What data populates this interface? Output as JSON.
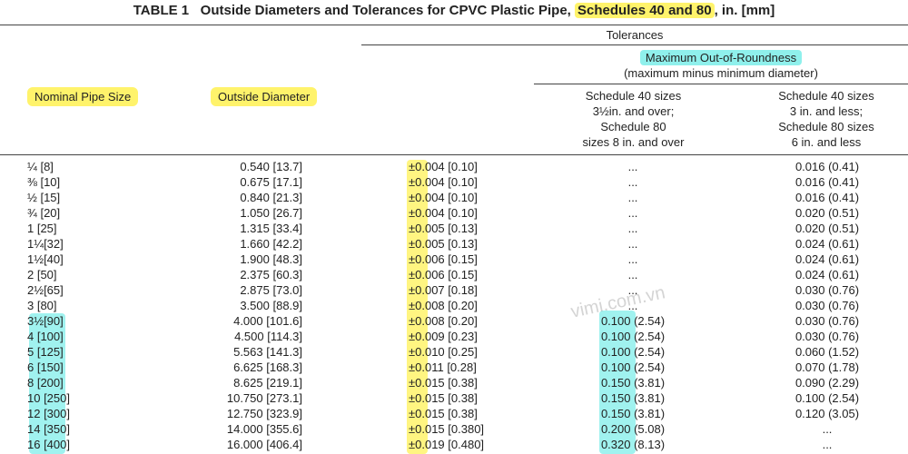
{
  "title": {
    "number": "TABLE 1",
    "text": "Outside Diameters and Tolerances for CPVC Plastic Pipe,",
    "highlight": "Schedules 40 and 80",
    "suffix": ", in. [mm]"
  },
  "header": {
    "tolerances": "Tolerances",
    "out_of_roundness": "Maximum Out-of-Roundness",
    "out_of_roundness_note": "(maximum minus minimum diameter)",
    "nominal_pipe_size": "Nominal Pipe Size",
    "outside_diameter": "Outside Diameter",
    "schedule_a": [
      "Schedule 40 sizes",
      "3½in. and over;",
      "Schedule 80",
      "sizes 8 in. and over"
    ],
    "schedule_b": [
      "Schedule 40 sizes",
      "3 in. and less;",
      "Schedule 80 sizes",
      "6 in. and less"
    ]
  },
  "table": {
    "rows": [
      [
        "¼ [8]",
        "0.540 [13.7]",
        "±0.004 [0.10]",
        "...",
        "0.016 (0.41)"
      ],
      [
        "⅜ [10]",
        "0.675 [17.1]",
        "±0.004 [0.10]",
        "...",
        "0.016 (0.41)"
      ],
      [
        "½ [15]",
        "0.840 [21.3]",
        "±0.004 [0.10]",
        "...",
        "0.016 (0.41)"
      ],
      [
        "¾ [20]",
        "1.050 [26.7]",
        "±0.004 [0.10]",
        "...",
        "0.020 (0.51)"
      ],
      [
        "1 [25]",
        "1.315 [33.4]",
        "±0.005 [0.13]",
        "...",
        "0.020 (0.51)"
      ],
      [
        "1¼[32]",
        "1.660 [42.2]",
        "±0.005 [0.13]",
        "...",
        "0.024 (0.61)"
      ],
      [
        "1½[40]",
        "1.900 [48.3]",
        "±0.006 [0.15]",
        "...",
        "0.024 (0.61)"
      ],
      [
        "2 [50]",
        "2.375 [60.3]",
        "±0.006 [0.15]",
        "...",
        "0.024 (0.61)"
      ],
      [
        "2½[65]",
        "2.875 [73.0]",
        "±0.007 [0.18]",
        "...",
        "0.030 (0.76)"
      ],
      [
        "3 [80]",
        "3.500 [88.9]",
        "±0.008 [0.20]",
        "...",
        "0.030 (0.76)"
      ],
      [
        "3½[90]",
        "4.000 [101.6]",
        "±0.008 [0.20]",
        "0.100 (2.54)",
        "0.030 (0.76)"
      ],
      [
        "4 [100]",
        "4.500 [114.3]",
        "±0.009 [0.23]",
        "0.100 (2.54)",
        "0.030 (0.76)"
      ],
      [
        "5 [125]",
        "5.563 [141.3]",
        "±0.010 [0.25]",
        "0.100 (2.54)",
        "0.060 (1.52)"
      ],
      [
        "6 [150]",
        "6.625 [168.3]",
        "±0.011 [0.28]",
        "0.100 (2.54)",
        "0.070 (1.78)"
      ],
      [
        "8 [200]",
        "8.625 [219.1]",
        "±0.015 [0.38]",
        "0.150 (3.81)",
        "0.090 (2.29)"
      ],
      [
        "10 [250]",
        "10.750 [273.1]",
        "±0.015 [0.38]",
        "0.150 (3.81)",
        "0.100 (2.54)"
      ],
      [
        "12 [300]",
        "12.750 [323.9]",
        "±0.015 [0.38]",
        "0.150 (3.81)",
        "0.120 (3.05)"
      ],
      [
        "14 [350]",
        "14.000 [355.6]",
        "±0.015 [0.380]",
        "0.200 (5.08)",
        "..."
      ],
      [
        "16 [400]",
        "16.000 [406.4]",
        "±0.019 [0.480]",
        "0.320 (8.13)",
        "..."
      ]
    ]
  },
  "watermark": "vimi.com.vn"
}
